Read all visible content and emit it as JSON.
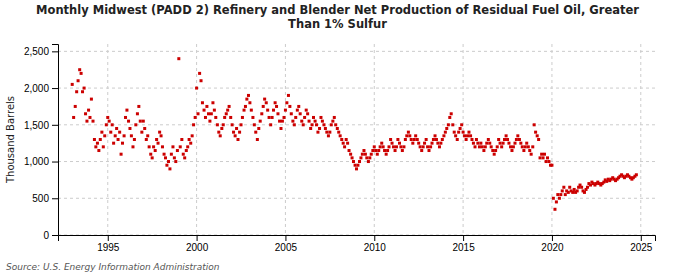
{
  "chart_data": {
    "type": "scatter",
    "title": "Monthly Midwest (PADD 2) Refinery and Blender Net Production of Residual Fuel Oil, Greater\nThan 1% Sulfur",
    "ylabel": "Thousand Barrels",
    "source": "Source: U.S. Energy Information Administration",
    "color": "#cc0000",
    "marker": "square",
    "grid": true,
    "xlim": [
      1992.2,
      2025.8
    ],
    "ylim": [
      0,
      2600
    ],
    "xticks": [
      1995,
      2000,
      2005,
      2010,
      2015,
      2020,
      2025
    ],
    "yticks": [
      0,
      500,
      {
        "value": 1000,
        "label": "1,000"
      },
      {
        "value": 1500,
        "label": "1,500"
      },
      {
        "value": 2000,
        "label": "2,000"
      },
      {
        "value": 2500,
        "label": "2,500"
      }
    ],
    "x": [
      1993.0,
      1993.08,
      1993.17,
      1993.25,
      1993.33,
      1993.42,
      1993.5,
      1993.58,
      1993.67,
      1993.75,
      1993.83,
      1993.92,
      1994.0,
      1994.08,
      1994.17,
      1994.25,
      1994.33,
      1994.42,
      1994.5,
      1994.58,
      1994.67,
      1994.75,
      1994.83,
      1994.92,
      1995.0,
      1995.08,
      1995.17,
      1995.25,
      1995.33,
      1995.42,
      1995.5,
      1995.58,
      1995.67,
      1995.75,
      1995.83,
      1995.92,
      1996.0,
      1996.08,
      1996.17,
      1996.25,
      1996.33,
      1996.42,
      1996.5,
      1996.58,
      1996.67,
      1996.75,
      1996.83,
      1996.92,
      1997.0,
      1997.08,
      1997.17,
      1997.25,
      1997.33,
      1997.42,
      1997.5,
      1997.58,
      1997.67,
      1997.75,
      1997.83,
      1997.92,
      1998.0,
      1998.08,
      1998.17,
      1998.25,
      1998.33,
      1998.42,
      1998.5,
      1998.58,
      1998.67,
      1998.75,
      1998.83,
      1998.92,
      1999.0,
      1999.08,
      1999.17,
      1999.25,
      1999.33,
      1999.42,
      1999.5,
      1999.58,
      1999.67,
      1999.75,
      1999.83,
      1999.92,
      2000.0,
      2000.08,
      2000.17,
      2000.25,
      2000.33,
      2000.42,
      2000.5,
      2000.58,
      2000.67,
      2000.75,
      2000.83,
      2000.92,
      2001.0,
      2001.08,
      2001.17,
      2001.25,
      2001.33,
      2001.42,
      2001.5,
      2001.58,
      2001.67,
      2001.75,
      2001.83,
      2001.92,
      2002.0,
      2002.08,
      2002.17,
      2002.25,
      2002.33,
      2002.42,
      2002.5,
      2002.58,
      2002.67,
      2002.75,
      2002.83,
      2002.92,
      2003.0,
      2003.08,
      2003.17,
      2003.25,
      2003.33,
      2003.42,
      2003.5,
      2003.58,
      2003.67,
      2003.75,
      2003.83,
      2003.92,
      2004.0,
      2004.08,
      2004.17,
      2004.25,
      2004.33,
      2004.42,
      2004.5,
      2004.58,
      2004.67,
      2004.75,
      2004.83,
      2004.92,
      2005.0,
      2005.08,
      2005.17,
      2005.25,
      2005.33,
      2005.42,
      2005.5,
      2005.58,
      2005.67,
      2005.75,
      2005.83,
      2005.92,
      2006.0,
      2006.08,
      2006.17,
      2006.25,
      2006.33,
      2006.42,
      2006.5,
      2006.58,
      2006.67,
      2006.75,
      2006.83,
      2006.92,
      2007.0,
      2007.08,
      2007.17,
      2007.25,
      2007.33,
      2007.42,
      2007.5,
      2007.58,
      2007.67,
      2007.75,
      2007.83,
      2007.92,
      2008.0,
      2008.08,
      2008.17,
      2008.25,
      2008.33,
      2008.42,
      2008.5,
      2008.58,
      2008.67,
      2008.75,
      2008.83,
      2008.92,
      2009.0,
      2009.08,
      2009.17,
      2009.25,
      2009.33,
      2009.42,
      2009.5,
      2009.58,
      2009.67,
      2009.75,
      2009.83,
      2009.92,
      2010.0,
      2010.08,
      2010.17,
      2010.25,
      2010.33,
      2010.42,
      2010.5,
      2010.58,
      2010.67,
      2010.75,
      2010.83,
      2010.92,
      2011.0,
      2011.08,
      2011.17,
      2011.25,
      2011.33,
      2011.42,
      2011.5,
      2011.58,
      2011.67,
      2011.75,
      2011.83,
      2011.92,
      2012.0,
      2012.08,
      2012.17,
      2012.25,
      2012.33,
      2012.42,
      2012.5,
      2012.58,
      2012.67,
      2012.75,
      2012.83,
      2012.92,
      2013.0,
      2013.08,
      2013.17,
      2013.25,
      2013.33,
      2013.42,
      2013.5,
      2013.58,
      2013.67,
      2013.75,
      2013.83,
      2013.92,
      2014.0,
      2014.08,
      2014.17,
      2014.25,
      2014.33,
      2014.42,
      2014.5,
      2014.58,
      2014.67,
      2014.75,
      2014.83,
      2014.92,
      2015.0,
      2015.08,
      2015.17,
      2015.25,
      2015.33,
      2015.42,
      2015.5,
      2015.58,
      2015.67,
      2015.75,
      2015.83,
      2015.92,
      2016.0,
      2016.08,
      2016.17,
      2016.25,
      2016.33,
      2016.42,
      2016.5,
      2016.58,
      2016.67,
      2016.75,
      2016.83,
      2016.92,
      2017.0,
      2017.08,
      2017.17,
      2017.25,
      2017.33,
      2017.42,
      2017.5,
      2017.58,
      2017.67,
      2017.75,
      2017.83,
      2017.92,
      2018.0,
      2018.08,
      2018.17,
      2018.25,
      2018.33,
      2018.42,
      2018.5,
      2018.58,
      2018.67,
      2018.75,
      2018.83,
      2018.92,
      2019.0,
      2019.08,
      2019.17,
      2019.25,
      2019.33,
      2019.42,
      2019.5,
      2019.58,
      2019.67,
      2019.75,
      2019.83,
      2019.92,
      2020.0,
      2020.08,
      2020.17,
      2020.25,
      2020.33,
      2020.42,
      2020.5,
      2020.58,
      2020.67,
      2020.75,
      2020.83,
      2020.92,
      2021.0,
      2021.08,
      2021.17,
      2021.25,
      2021.33,
      2021.42,
      2021.5,
      2021.58,
      2021.67,
      2021.75,
      2021.83,
      2021.92,
      2022.0,
      2022.08,
      2022.17,
      2022.25,
      2022.33,
      2022.42,
      2022.5,
      2022.58,
      2022.67,
      2022.75,
      2022.83,
      2022.92,
      2023.0,
      2023.08,
      2023.17,
      2023.25,
      2023.33,
      2023.42,
      2023.5,
      2023.58,
      2023.67,
      2023.75,
      2023.83,
      2023.92,
      2024.0,
      2024.08,
      2024.17,
      2024.25,
      2024.33,
      2024.42,
      2024.5,
      2024.58,
      2024.67,
      2024.75
    ],
    "values": [
      2050,
      1600,
      1750,
      1950,
      2100,
      2250,
      2200,
      1950,
      2000,
      1650,
      1550,
      1700,
      1600,
      1850,
      1550,
      1300,
      1200,
      1250,
      1150,
      1300,
      1400,
      1200,
      1350,
      1500,
      1600,
      1550,
      1400,
      1500,
      1250,
      1350,
      1450,
      1300,
      1400,
      1100,
      1250,
      1350,
      1600,
      1700,
      1550,
      1450,
      1350,
      1200,
      1300,
      1500,
      1650,
      1750,
      1550,
      1400,
      1550,
      1450,
      1300,
      1350,
      1200,
      1100,
      1050,
      1200,
      1150,
      1300,
      1250,
      1400,
      1350,
      1200,
      1100,
      1050,
      950,
      1000,
      900,
      1100,
      1200,
      1050,
      1000,
      1150,
      2400,
      1200,
      1300,
      1100,
      1050,
      1150,
      1200,
      1300,
      1250,
      1350,
      1500,
      1600,
      2000,
      1650,
      2200,
      2100,
      1800,
      1700,
      1600,
      1750,
      1650,
      1550,
      1650,
      1800,
      1700,
      1600,
      1500,
      1400,
      1350,
      1450,
      1500,
      1600,
      1650,
      1700,
      1750,
      1600,
      1500,
      1400,
      1350,
      1450,
      1300,
      1400,
      1500,
      1600,
      1700,
      1750,
      1850,
      1900,
      1800,
      1700,
      1600,
      1500,
      1400,
      1300,
      1450,
      1550,
      1650,
      1750,
      1850,
      1800,
      1700,
      1600,
      1500,
      1600,
      1700,
      1800,
      1750,
      1650,
      1550,
      1450,
      1550,
      1600,
      1700,
      1800,
      1900,
      1750,
      1650,
      1550,
      1500,
      1600,
      1700,
      1750,
      1650,
      1550,
      1500,
      1600,
      1700,
      1650,
      1550,
      1450,
      1500,
      1600,
      1550,
      1500,
      1400,
      1450,
      1600,
      1550,
      1500,
      1450,
      1400,
      1350,
      1400,
      1500,
      1550,
      1600,
      1500,
      1450,
      1400,
      1350,
      1300,
      1250,
      1200,
      1300,
      1250,
      1150,
      1100,
      1050,
      1000,
      950,
      900,
      950,
      1000,
      1050,
      1100,
      1150,
      1100,
      1050,
      1000,
      1050,
      1100,
      1150,
      1200,
      1150,
      1100,
      1150,
      1200,
      1250,
      1200,
      1150,
      1100,
      1150,
      1200,
      1300,
      1250,
      1200,
      1150,
      1200,
      1300,
      1250,
      1200,
      1150,
      1200,
      1300,
      1350,
      1400,
      1350,
      1300,
      1250,
      1300,
      1350,
      1300,
      1250,
      1200,
      1150,
      1200,
      1250,
      1300,
      1200,
      1150,
      1200,
      1250,
      1300,
      1350,
      1300,
      1250,
      1200,
      1250,
      1300,
      1350,
      1400,
      1450,
      1500,
      1600,
      1650,
      1500,
      1400,
      1350,
      1300,
      1400,
      1450,
      1500,
      1400,
      1350,
      1300,
      1350,
      1400,
      1350,
      1300,
      1250,
      1200,
      1300,
      1250,
      1200,
      1250,
      1200,
      1150,
      1200,
      1250,
      1300,
      1250,
      1200,
      1150,
      1100,
      1150,
      1200,
      1300,
      1250,
      1200,
      1250,
      1300,
      1350,
      1300,
      1250,
      1200,
      1150,
      1200,
      1250,
      1300,
      1350,
      1300,
      1250,
      1200,
      1150,
      1200,
      1250,
      1200,
      1150,
      1100,
      1200,
      1500,
      1400,
      1350,
      1300,
      1050,
      1100,
      1050,
      1100,
      1000,
      1050,
      1000,
      950,
      950,
      500,
      350,
      450,
      550,
      500,
      550,
      600,
      650,
      550,
      600,
      580,
      650,
      600,
      580,
      620,
      580,
      600,
      650,
      680,
      650,
      600,
      580,
      620,
      650,
      700,
      680,
      720,
      700,
      680,
      700,
      720,
      700,
      680,
      700,
      720,
      750,
      730,
      760,
      740,
      760,
      780,
      760,
      740,
      760,
      780,
      800,
      820,
      800,
      780,
      800,
      820,
      800,
      780,
      760,
      780,
      800,
      820
    ]
  }
}
